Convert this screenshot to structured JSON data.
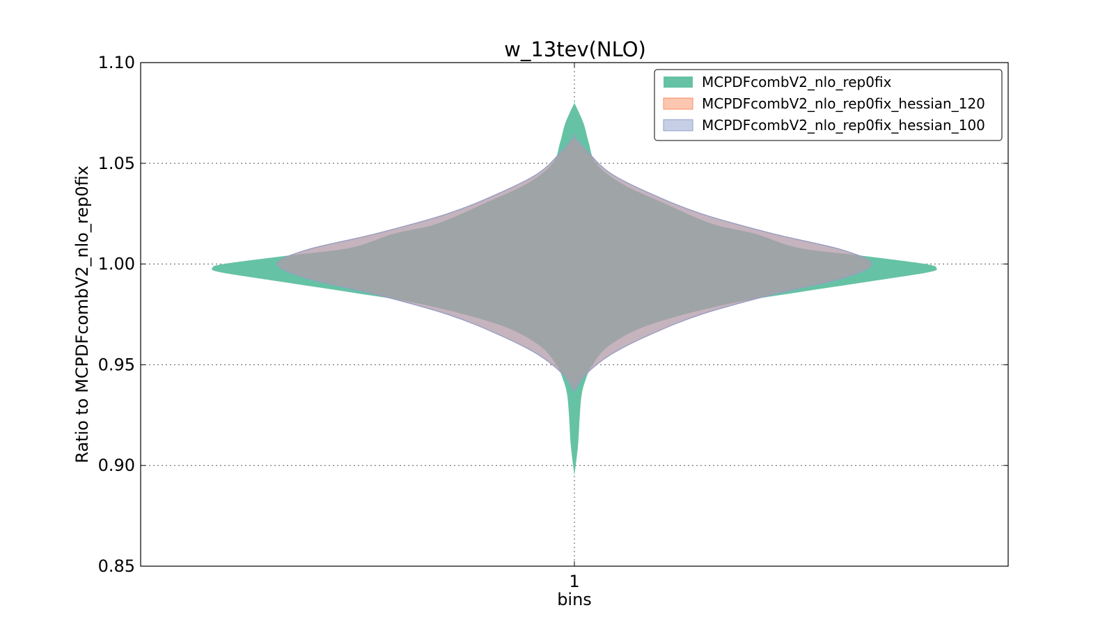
{
  "chart_data": {
    "type": "violin",
    "title": "w_13tev(NLO)",
    "xlabel": "bins",
    "ylabel": "Ratio to MCPDFcombV2_nlo_rep0fix",
    "categories": [
      "1"
    ],
    "ylim": [
      0.85,
      1.1
    ],
    "yticks": [
      "0.85",
      "0.90",
      "0.95",
      "1.00",
      "1.05",
      "1.10"
    ],
    "grid": true,
    "legend_position": "top-right",
    "series": [
      {
        "name": "MCPDFcombV2_nlo_rep0fix",
        "color": "#66c2a5",
        "min": 0.895,
        "max": 1.08,
        "profile": [
          [
            0.895,
            0.0
          ],
          [
            0.91,
            0.01
          ],
          [
            0.925,
            0.015
          ],
          [
            0.935,
            0.02
          ],
          [
            0.942,
            0.03
          ],
          [
            0.95,
            0.05
          ],
          [
            0.96,
            0.1
          ],
          [
            0.97,
            0.21
          ],
          [
            0.98,
            0.42
          ],
          [
            0.986,
            0.62
          ],
          [
            0.992,
            0.84
          ],
          [
            0.996,
            0.98
          ],
          [
            0.998,
            1.0
          ],
          [
            1.0,
            0.97
          ],
          [
            1.004,
            0.8
          ],
          [
            1.008,
            0.62
          ],
          [
            1.015,
            0.5
          ],
          [
            1.02,
            0.38
          ],
          [
            1.03,
            0.25
          ],
          [
            1.04,
            0.13
          ],
          [
            1.05,
            0.06
          ],
          [
            1.06,
            0.04
          ],
          [
            1.07,
            0.025
          ],
          [
            1.08,
            0.0
          ]
        ]
      },
      {
        "name": "MCPDFcombV2_nlo_rep0fix_hessian_120",
        "color": "#fc8d62",
        "min": 0.937,
        "max": 1.063,
        "profile": [
          [
            0.937,
            0.0
          ],
          [
            0.945,
            0.03
          ],
          [
            0.955,
            0.1
          ],
          [
            0.965,
            0.21
          ],
          [
            0.975,
            0.35
          ],
          [
            0.985,
            0.55
          ],
          [
            0.993,
            0.74
          ],
          [
            1.0,
            0.82
          ],
          [
            1.007,
            0.74
          ],
          [
            1.015,
            0.55
          ],
          [
            1.025,
            0.35
          ],
          [
            1.035,
            0.21
          ],
          [
            1.045,
            0.1
          ],
          [
            1.055,
            0.04
          ],
          [
            1.063,
            0.0
          ]
        ]
      },
      {
        "name": "MCPDFcombV2_nlo_rep0fix_hessian_100",
        "color": "#8da0cb",
        "min": 0.937,
        "max": 1.063,
        "profile": [
          [
            0.937,
            0.0
          ],
          [
            0.945,
            0.03
          ],
          [
            0.955,
            0.1
          ],
          [
            0.965,
            0.21
          ],
          [
            0.975,
            0.35
          ],
          [
            0.985,
            0.55
          ],
          [
            0.993,
            0.74
          ],
          [
            1.0,
            0.82
          ],
          [
            1.007,
            0.74
          ],
          [
            1.015,
            0.55
          ],
          [
            1.025,
            0.35
          ],
          [
            1.035,
            0.21
          ],
          [
            1.045,
            0.1
          ],
          [
            1.055,
            0.04
          ],
          [
            1.063,
            0.0
          ]
        ]
      }
    ]
  }
}
